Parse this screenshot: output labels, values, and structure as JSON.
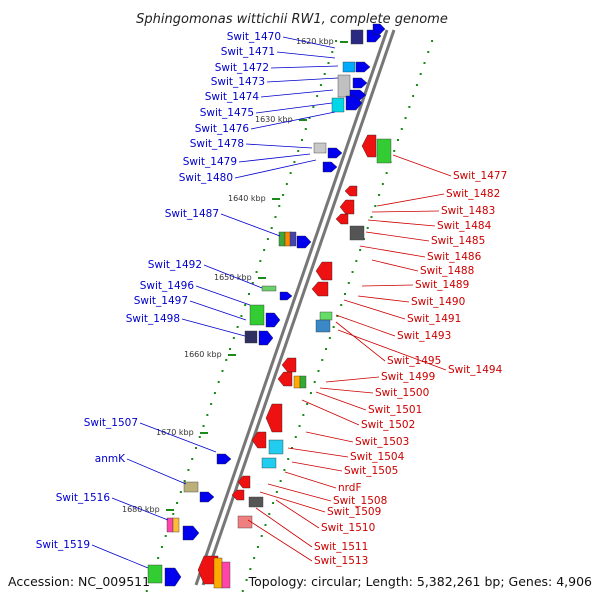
{
  "title": "Sphingomonas wittichii RW1, complete genome",
  "accession": "Accession: NC_009511",
  "topology": "Topology: circular; Length: 5,382,261 bp; Genes: 4,906",
  "colors": {
    "forward_label": "#0000cc",
    "reverse_label": "#cc0000",
    "backbone": "#777777",
    "tick": "#1a8a1a"
  },
  "ticks": [
    "1620 kbp",
    "1630 kbp",
    "1640 kbp",
    "1650 kbp",
    "1660 kbp",
    "1670 kbp",
    "1680 kbp"
  ],
  "left_genes": [
    "Swit_1470",
    "Swit_1471",
    "Swit_1472",
    "Swit_1473",
    "Swit_1474",
    "Swit_1475",
    "Swit_1476",
    "Swit_1478",
    "Swit_1479",
    "Swit_1480",
    "Swit_1487",
    "Swit_1492",
    "Swit_1496",
    "Swit_1497",
    "Swit_1498",
    "Swit_1507",
    "anmK",
    "Swit_1516",
    "Swit_1519"
  ],
  "right_genes": [
    "Swit_1477",
    "Swit_1482",
    "Swit_1483",
    "Swit_1484",
    "Swit_1485",
    "Swit_1486",
    "Swit_1488",
    "Swit_1489",
    "Swit_1490",
    "Swit_1491",
    "Swit_1493",
    "Swit_1495",
    "Swit_1494",
    "Swit_1499",
    "Swit_1500",
    "Swit_1501",
    "Swit_1502",
    "Swit_1503",
    "Swit_1504",
    "Swit_1505",
    "nrdF",
    "Swit_1508",
    "Swit_1509",
    "Swit_1510",
    "Swit_1511",
    "Swit_1513"
  ]
}
